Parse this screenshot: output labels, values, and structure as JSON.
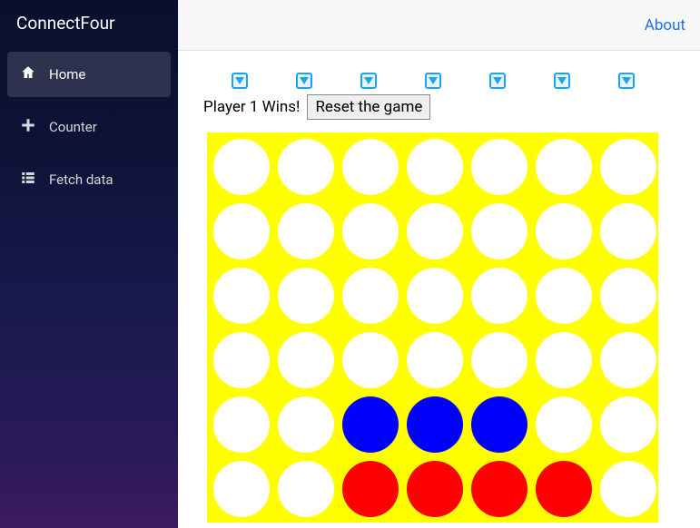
{
  "brand": "ConnectFour",
  "topnav": {
    "about": "About"
  },
  "sidebar": {
    "items": [
      {
        "label": "Home",
        "icon": "home",
        "active": true
      },
      {
        "label": "Counter",
        "icon": "plus",
        "active": false
      },
      {
        "label": "Fetch data",
        "icon": "list",
        "active": false
      }
    ]
  },
  "game": {
    "status_text": "Player 1 Wins!",
    "reset_label": "Reset the game",
    "columns": 7,
    "rows": 6,
    "board_color": "#ffff00",
    "empty_color": "#ffffff",
    "player_colors": {
      "1": "#ff0000",
      "2": "#0000ff"
    },
    "drop_button": {
      "border": "#1ea3f0",
      "fill": "#e6f4fd",
      "arrow": "#1ea3f0"
    },
    "grid": [
      [
        0,
        0,
        0,
        0,
        0,
        0,
        0
      ],
      [
        0,
        0,
        0,
        0,
        0,
        0,
        0
      ],
      [
        0,
        0,
        0,
        0,
        0,
        0,
        0
      ],
      [
        0,
        0,
        0,
        0,
        0,
        0,
        0
      ],
      [
        0,
        0,
        2,
        2,
        2,
        0,
        0
      ],
      [
        0,
        0,
        1,
        1,
        1,
        1,
        0
      ]
    ]
  }
}
